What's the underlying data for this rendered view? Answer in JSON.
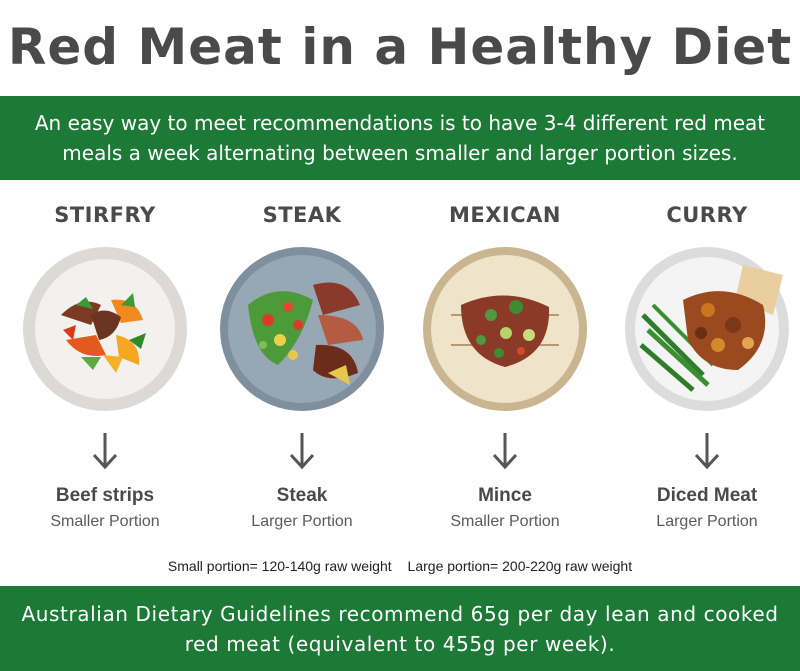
{
  "title": "Red Meat in a Healthy Diet",
  "intro": "An easy way to meet recommendations is to have 3-4 different red meat meals a week alternating between smaller and larger portion sizes.",
  "meals": [
    {
      "name": "STIRFRY",
      "cut": "Beef strips",
      "portion": "Smaller Portion",
      "plate_color": "#e9e7e3",
      "icon": "stirfry-plate-icon"
    },
    {
      "name": "STEAK",
      "cut": "Steak",
      "portion": "Larger Portion",
      "plate_color": "#8f9fae",
      "icon": "steak-plate-icon"
    },
    {
      "name": "MEXICAN",
      "cut": "Mince",
      "portion": "Smaller Portion",
      "plate_color": "#d8c9a8",
      "icon": "mexican-plate-icon"
    },
    {
      "name": "CURRY",
      "cut": "Diced Meat",
      "portion": "Larger Portion",
      "plate_color": "#eeeeee",
      "icon": "curry-plate-icon"
    }
  ],
  "portion_note": {
    "small": "Small portion= 120-140g raw weight",
    "large": "Large portion= 200-220g raw weight"
  },
  "footer": "Australian Dietary Guidelines recommend 65g per day lean and cooked red meat (equivalent to 455g per week).",
  "colors": {
    "banner": "#1c7a36",
    "title": "#4a4a4a"
  }
}
